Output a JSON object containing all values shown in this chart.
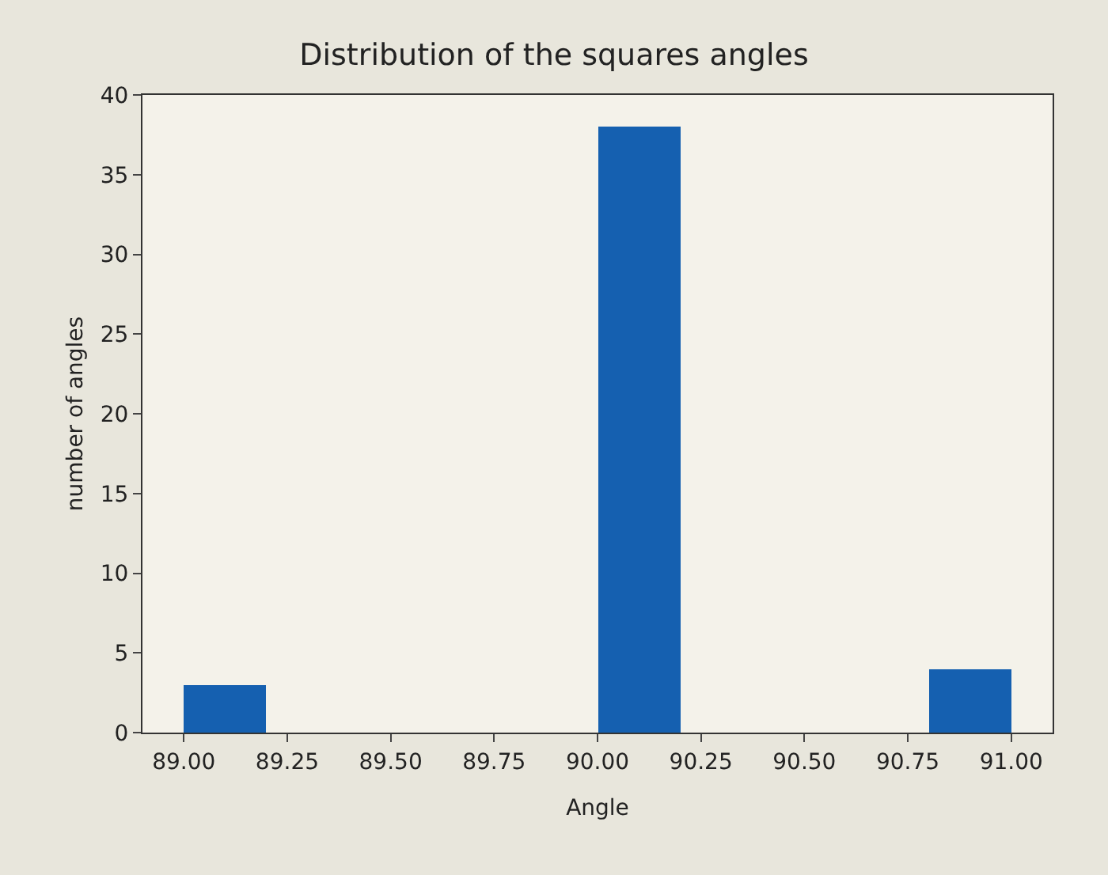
{
  "chart_data": {
    "type": "histogram",
    "title": "Distribution of the squares angles",
    "xlabel": "Angle",
    "ylabel": "number of angles",
    "bins": [
      89.0,
      89.2,
      89.4,
      89.6,
      89.8,
      90.0,
      90.2,
      90.4,
      90.6,
      90.8,
      91.0
    ],
    "values": [
      3,
      0,
      0,
      0,
      0,
      38,
      0,
      0,
      0,
      4
    ],
    "color": "#1560b0",
    "xlim": [
      88.9,
      91.1
    ],
    "xticks": [
      {
        "value": 89.0,
        "label": "89.00"
      },
      {
        "value": 89.25,
        "label": "89.25"
      },
      {
        "value": 89.5,
        "label": "89.50"
      },
      {
        "value": 89.75,
        "label": "89.75"
      },
      {
        "value": 90.0,
        "label": "90.00"
      },
      {
        "value": 90.25,
        "label": "90.25"
      },
      {
        "value": 90.5,
        "label": "90.50"
      },
      {
        "value": 90.75,
        "label": "90.75"
      },
      {
        "value": 91.0,
        "label": "91.00"
      }
    ],
    "ylim": [
      0,
      40
    ],
    "yticks": [
      0,
      5,
      10,
      15,
      20,
      25,
      30,
      35,
      40
    ],
    "grid": false
  }
}
